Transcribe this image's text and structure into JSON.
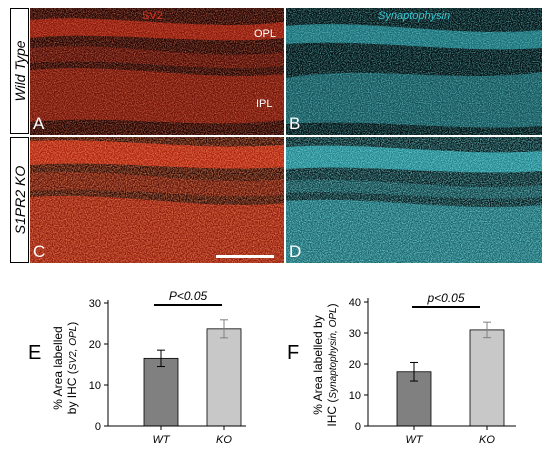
{
  "rows": [
    "Wild Type",
    "S1PR2 KO"
  ],
  "columns": {
    "left": "SV2",
    "right": "Synaptophysin"
  },
  "layers": {
    "top": "OPL",
    "bottom": "IPL"
  },
  "panel_labels": [
    "A",
    "B",
    "C",
    "D"
  ],
  "colors": {
    "sv2": "#e0301e",
    "syn": "#38c8d4",
    "wt_bar": "#808080",
    "ko_bar": "#c8c8c8"
  },
  "chart_data": [
    {
      "type": "bar",
      "panel": "E",
      "categories": [
        "WT",
        "KO"
      ],
      "values": [
        16.5,
        23.7
      ],
      "errors": [
        2.0,
        2.2
      ],
      "ylabel_main": "% Area labelled",
      "ylabel_by": "by IHC (",
      "ylabel_sub": "SV2, OPL",
      "ylabel_close": ")",
      "ylim": [
        0,
        30
      ],
      "yticks": [
        "0",
        "10",
        "20",
        "30"
      ],
      "significance": "P<0.05"
    },
    {
      "type": "bar",
      "panel": "F",
      "categories": [
        "WT",
        "KO"
      ],
      "values": [
        17.5,
        31.0
      ],
      "errors": [
        3.0,
        2.5
      ],
      "ylabel_main": "% Area labelled by",
      "ylabel_by": "IHC (",
      "ylabel_sub": "Synaptophysin, OPL",
      "ylabel_close": ")",
      "ylim": [
        0,
        40
      ],
      "yticks": [
        "0",
        "10",
        "20",
        "30",
        "40"
      ],
      "significance": "p<0.05"
    }
  ]
}
